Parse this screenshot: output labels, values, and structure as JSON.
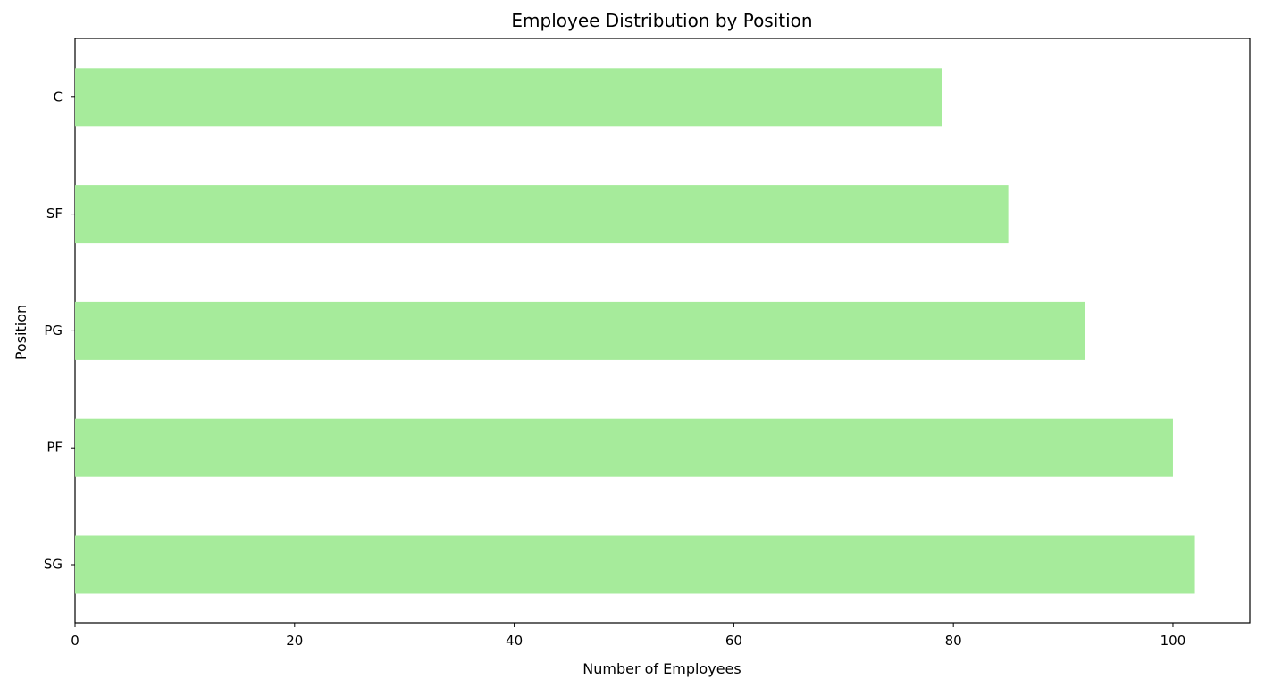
{
  "chart_data": {
    "type": "bar",
    "orientation": "horizontal",
    "title": "Employee Distribution by Position",
    "xlabel": "Number of Employees",
    "ylabel": "Position",
    "categories": [
      "SG",
      "PF",
      "PG",
      "SF",
      "C"
    ],
    "values": [
      102,
      100,
      92,
      85,
      79
    ],
    "xlim": [
      0,
      107
    ],
    "xticks": [
      0,
      20,
      40,
      60,
      80,
      100
    ],
    "grid": false,
    "legend": "none",
    "colors": {
      "bar": "#a6eb9b",
      "axis": "#000000",
      "background": "#ffffff"
    }
  }
}
